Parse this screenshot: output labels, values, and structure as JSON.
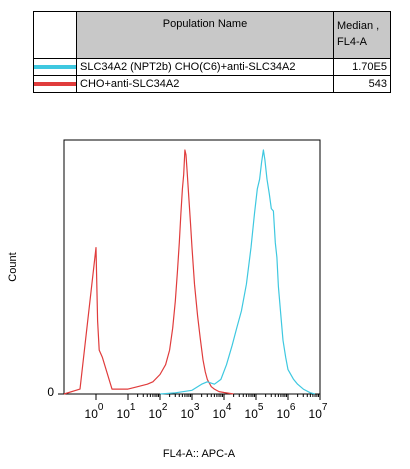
{
  "legend": {
    "header_name": "Population Name",
    "header_median_line1": "Median ,",
    "header_median_line2": "FL4-A",
    "rows": [
      {
        "name": "SLC34A2 (NPT2b) CHO(C6)+anti-SLC34A2",
        "median": "1.70E5",
        "color": "#3ec8e0"
      },
      {
        "name": "CHO+anti-SLC34A2",
        "median": "543",
        "color": "#e03c3c"
      }
    ]
  },
  "chart_data": {
    "type": "line",
    "xlabel": "FL4-A:: APC-A",
    "ylabel": "Count",
    "x_scale": "log",
    "xlim": [
      -10,
      10000000
    ],
    "ylim": [
      0,
      100
    ],
    "y_ticks": [
      "0"
    ],
    "x_ticks": [
      {
        "base": "10",
        "exp": "0"
      },
      {
        "base": "10",
        "exp": "1"
      },
      {
        "base": "10",
        "exp": "2"
      },
      {
        "base": "10",
        "exp": "3"
      },
      {
        "base": "10",
        "exp": "4"
      },
      {
        "base": "10",
        "exp": "5"
      },
      {
        "base": "10",
        "exp": "6"
      },
      {
        "base": "10",
        "exp": "7"
      }
    ],
    "grid": false,
    "series": [
      {
        "name": "CHO+anti-SLC34A2",
        "color": "#e03c3c",
        "x": [
          -10,
          -5,
          0,
          0.5,
          1,
          2,
          5,
          10,
          20,
          40,
          60,
          100,
          150,
          200,
          250,
          300,
          350,
          400,
          450,
          500,
          550,
          600,
          650,
          700,
          800,
          900,
          1000,
          1200,
          1500,
          1800,
          2200,
          2600,
          3000,
          4000,
          5000,
          7000,
          10000,
          20000
        ],
        "y": [
          0,
          2,
          60,
          30,
          18,
          15,
          2,
          2,
          3,
          4,
          5,
          8,
          12,
          18,
          27,
          38,
          50,
          62,
          74,
          84,
          90,
          100,
          98,
          92,
          80,
          70,
          60,
          45,
          32,
          23,
          14,
          9,
          6,
          3,
          2,
          1,
          0.6,
          0
        ]
      },
      {
        "name": "SLC34A2 (NPT2b) CHO(C6)+anti-SLC34A2",
        "color": "#3ec8e0",
        "x": [
          100,
          300,
          1000,
          2000,
          3000,
          5000,
          8000,
          12000,
          18000,
          25000,
          35000,
          50000,
          70000,
          90000,
          110000,
          130000,
          150000,
          170000,
          190000,
          220000,
          260000,
          300000,
          350000,
          400000,
          450000,
          500000,
          600000,
          700000,
          850000,
          1000000,
          1500000,
          2000000,
          3000000,
          5000000,
          7000000
        ],
        "y": [
          0,
          0.5,
          1.5,
          4,
          5,
          4,
          6,
          12,
          20,
          27,
          34,
          45,
          60,
          74,
          84,
          88,
          95,
          100,
          96,
          88,
          82,
          76,
          75,
          62,
          56,
          44,
          32,
          22,
          15,
          10,
          6,
          4,
          2,
          0.5,
          0
        ]
      }
    ]
  }
}
